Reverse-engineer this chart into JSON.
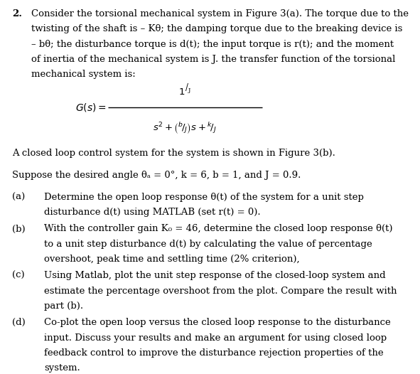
{
  "background_color": "#ffffff",
  "text_color": "#000000",
  "fig_width": 5.91,
  "fig_height": 5.26,
  "dpi": 100,
  "line1_text": "Consider the torsional mechanical system in Figure 3(a). The torque due to the",
  "line2_text": "twisting of the shaft is – Kθ; the damping torque due to the breaking device is",
  "line3_text": "– bθ; the disturbance torque is d(t); the input torque is r(t); and the moment",
  "line4_text": "of inertia of the mechanical system is J. the transfer function of the torsional",
  "line5_text": "mechanical system is:",
  "closed_loop_text": "A closed loop control system for the system is shown in Figure 3(b).",
  "suppose_text": "Suppose the desired angle θₐ = 0°, k = 6, b = 1, and J = 0.9.",
  "part_a_label": "(a)",
  "part_a_line1": "Determine the open loop response θ(t) of the system for a unit step",
  "part_a_line2": "disturbance d(t) using MATLAB (set r(t) = 0).",
  "part_b_label": "(b)",
  "part_b_line1": "With the controller gain K₀ = 46, determine the closed loop response θ(t)",
  "part_b_line2": "to a unit step disturbance d(t) by calculating the value of percentage",
  "part_b_line3": "overshoot, peak time and settling time (2% criterion),",
  "part_c_label": "(c)",
  "part_c_line1": "Using Matlab, plot the unit step response of the closed-loop system and",
  "part_c_line2": "estimate the percentage overshoot from the plot. Compare the result with",
  "part_c_line3": "part (b).",
  "part_d_label": "(d)",
  "part_d_line1": "Co-plot the open loop versus the closed loop response to the disturbance",
  "part_d_line2": "input. Discuss your results and make an argument for using closed loop",
  "part_d_line3": "feedback control to improve the disturbance rejection properties of the",
  "part_d_line4": "system."
}
